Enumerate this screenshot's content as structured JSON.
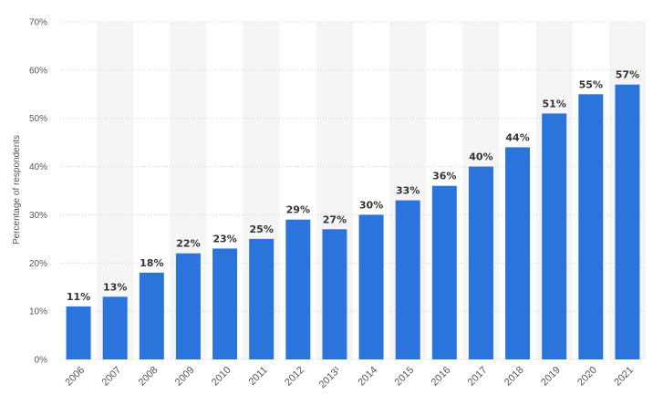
{
  "chart_data": {
    "type": "bar",
    "categories": [
      "2006",
      "2007",
      "2008",
      "2009",
      "2010",
      "2011",
      "2012",
      "2013¹",
      "2014",
      "2015",
      "2016",
      "2017",
      "2018",
      "2019",
      "2020",
      "2021"
    ],
    "values": [
      11,
      13,
      18,
      22,
      23,
      25,
      29,
      27,
      30,
      33,
      36,
      40,
      44,
      51,
      55,
      57
    ],
    "data_labels": [
      "11%",
      "13%",
      "18%",
      "22%",
      "23%",
      "25%",
      "29%",
      "27%",
      "30%",
      "33%",
      "36%",
      "40%",
      "44%",
      "51%",
      "55%",
      "57%"
    ],
    "title": "",
    "xlabel": "",
    "ylabel": "Percentage of respondents",
    "ylim": [
      0,
      70
    ],
    "yticks": [
      "0%",
      "10%",
      "20%",
      "30%",
      "40%",
      "50%",
      "60%",
      "70%"
    ],
    "grid": true,
    "colors": {
      "bar": "#2a74dc",
      "band": "#f5f5f5",
      "grid": "#cfcfcf"
    }
  }
}
